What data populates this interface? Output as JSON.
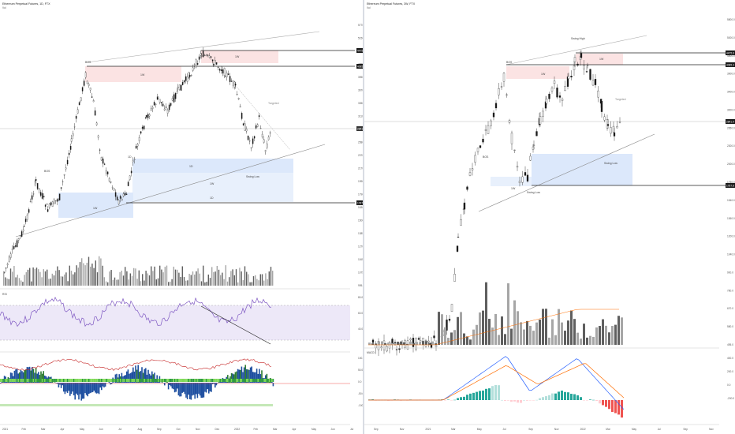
{
  "colors": {
    "up": "#1a1a1a",
    "down": "#1a1a1a",
    "zoneRed": "#fbe3e3",
    "zoneBlue": "#dce8fb",
    "rsiBand": "#ede8f8",
    "rsi": "#7e57c2",
    "macd": "#2962ff",
    "signal": "#ff6d00",
    "volGrey": "#a6a6a6",
    "volDark": "#5f5f5f",
    "histGreen": "#26a69a",
    "histRed": "#ef5350",
    "histLightGreen": "#b2dfdb",
    "histLightRed": "#ffcdd2"
  },
  "left": {
    "title": "Ethereum Perpetual Futures, 1D, FTX",
    "subtitle": "Vol",
    "price_ticks": [
      "5770.0",
      "5150.0",
      "4650.0",
      "4300.0",
      "3950.0",
      "3670.0",
      "3350.0",
      "3110.0",
      "2840.0",
      "2580.0",
      "2370.0",
      "2170.0",
      "1990.0",
      "1790.0",
      "1630.0",
      "1500.0",
      "1385.0",
      "1270.0",
      "1165.0",
      "1075.0",
      "995.0"
    ],
    "price_tags": [
      "4475.8",
      "4085.3",
      "2841.9",
      "1787.8"
    ],
    "osc1_ticks": [
      "80.00",
      "60.00",
      "40.00"
    ],
    "osc1_label": "RSI",
    "osc2_ticks": [
      "100.0",
      "50.0",
      "0.0",
      "-50.0",
      "-100.0"
    ],
    "time_ticks": [
      "2021",
      "Feb",
      "Mar",
      "Apr",
      "May",
      "Jun",
      "Jul",
      "Aug",
      "Sep",
      "Oct",
      "Nov",
      "Dec",
      "2022",
      "Feb",
      "Mar",
      "Apr",
      "May",
      "Jun",
      "Jul"
    ],
    "annotations": {
      "bos": "BOS",
      "tf1": "1W",
      "tf2": "1D",
      "mid": "1D",
      "target": "Targeted",
      "swing_low": "Swing Low",
      "ob": "1W",
      "label1": "1D"
    }
  },
  "right": {
    "title": "Ethereum Perpetual Futures, 3W, FTX",
    "subtitle": "Vol",
    "price_ticks": [
      "5800.0",
      "5000.0",
      "4500.0",
      "3900.0",
      "3400.0",
      "3000.0",
      "2650.0",
      "2300.0",
      "2000.0",
      "1750.0",
      "1540.0",
      "1360.0",
      "1200.0",
      "1040.0",
      "900.0",
      "780.0",
      "670.0",
      "580.0",
      "495.0"
    ],
    "price_tags": [
      "4475.8",
      "4085.3",
      "2841.9",
      "1787.8"
    ],
    "osc_label": "MACD",
    "osc_ticks": [
      "400.0",
      "200.0",
      "0.0",
      "-200.0"
    ],
    "time_ticks": [
      "Sep",
      "Nov",
      "2021",
      "Mar",
      "May",
      "Jul",
      "Sep",
      "Nov",
      "2022",
      "Mar",
      "May",
      "Jul",
      "Sep",
      "Nov"
    ],
    "annotations": {
      "swing_high": "Swing High",
      "bos": "BOS",
      "tf1": "1W",
      "tf2": "1W",
      "target": "Targeted",
      "swing_low": "Swing Low",
      "swing_low2": "Swing Low",
      "zone": "1W"
    }
  },
  "chart_data": [
    {
      "type": "line",
      "title": "Ethereum Perpetual Futures, 1D, FTX",
      "xlabel": "",
      "ylabel": "",
      "x": [
        "2021",
        "Feb",
        "Mar",
        "Apr",
        "May",
        "Jun",
        "Jul",
        "Aug",
        "Sep",
        "Oct",
        "Nov",
        "Dec",
        "2022",
        "Feb",
        "Mar"
      ],
      "series": [
        {
          "values": [
            740,
            1300,
            1600,
            2100,
            3900,
            2600,
            2000,
            2600,
            3450,
            3000,
            4800,
            4300,
            3800,
            2650,
            2840
          ]
        }
      ],
      "ylim": [
        995,
        5770
      ],
      "grid": false
    },
    {
      "type": "bar",
      "title": "Ethereum Perpetual Futures, 3W, FTX",
      "xlabel": "",
      "ylabel": "",
      "categories": [
        "Sep",
        "Nov",
        "2021",
        "Mar",
        "May",
        "Jul",
        "Sep",
        "Nov",
        "2022",
        "Mar"
      ],
      "series": [
        {
          "values": [
            360,
            480,
            640,
            1800,
            2800,
            2200,
            3400,
            4500,
            3000,
            2840
          ]
        }
      ],
      "ylim": [
        495,
        5800
      ],
      "grid": false
    }
  ]
}
